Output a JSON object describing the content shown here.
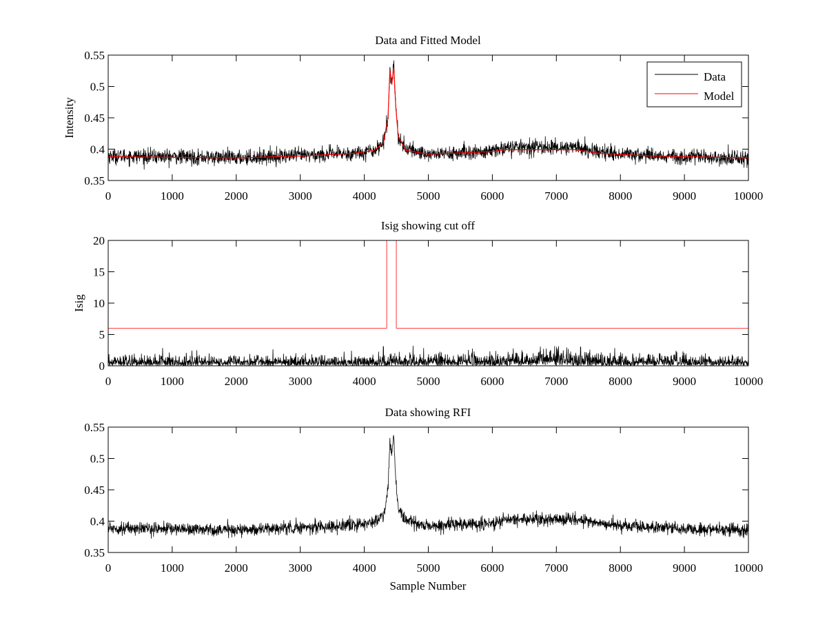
{
  "figure": {
    "background": "#ffffff"
  },
  "chart_data": [
    {
      "type": "line",
      "title": "Data and Fitted Model",
      "xlabel": "",
      "ylabel": "Intensity",
      "xlim": [
        0,
        10000
      ],
      "ylim": [
        0.35,
        0.55
      ],
      "xticks": [
        0,
        1000,
        2000,
        3000,
        4000,
        5000,
        6000,
        7000,
        8000,
        9000,
        10000
      ],
      "yticks": [
        0.35,
        0.4,
        0.45,
        0.5,
        0.55
      ],
      "ytick_labels": [
        "0.35",
        "0.4",
        "0.45",
        "0.5",
        "0.55"
      ],
      "grid": false,
      "legend": {
        "placement": "top-right",
        "entries": [
          "Data",
          "Model"
        ]
      },
      "series": [
        {
          "name": "Data",
          "color": "#000000",
          "kind": "noisy",
          "noise_amplitude": 0.006,
          "baseline": [
            [
              0,
              0.389
            ],
            [
              1000,
              0.388
            ],
            [
              2000,
              0.386
            ],
            [
              3000,
              0.39
            ],
            [
              3800,
              0.393
            ],
            [
              4150,
              0.398
            ],
            [
              4300,
              0.41
            ],
            [
              4370,
              0.45
            ],
            [
              4400,
              0.525
            ],
            [
              4430,
              0.505
            ],
            [
              4460,
              0.538
            ],
            [
              4490,
              0.47
            ],
            [
              4530,
              0.42
            ],
            [
              4650,
              0.4
            ],
            [
              5000,
              0.392
            ],
            [
              6000,
              0.396
            ],
            [
              6200,
              0.403
            ],
            [
              6800,
              0.403
            ],
            [
              7300,
              0.403
            ],
            [
              7700,
              0.395
            ],
            [
              8500,
              0.39
            ],
            [
              9000,
              0.388
            ],
            [
              10000,
              0.385
            ]
          ]
        },
        {
          "name": "Model",
          "color": "#ff0000",
          "kind": "smooth",
          "baseline": [
            [
              0,
              0.388
            ],
            [
              1000,
              0.387
            ],
            [
              2000,
              0.386
            ],
            [
              3000,
              0.389
            ],
            [
              3800,
              0.393
            ],
            [
              4150,
              0.398
            ],
            [
              4300,
              0.41
            ],
            [
              4370,
              0.45
            ],
            [
              4400,
              0.527
            ],
            [
              4430,
              0.503
            ],
            [
              4460,
              0.532
            ],
            [
              4490,
              0.47
            ],
            [
              4530,
              0.42
            ],
            [
              4650,
              0.398
            ],
            [
              5000,
              0.392
            ],
            [
              6000,
              0.396
            ],
            [
              6200,
              0.399
            ],
            [
              6800,
              0.399
            ],
            [
              7300,
              0.399
            ],
            [
              7700,
              0.393
            ],
            [
              8500,
              0.389
            ],
            [
              9000,
              0.388
            ],
            [
              10000,
              0.386
            ]
          ]
        }
      ]
    },
    {
      "type": "line",
      "title": "Isig showing cut off",
      "xlabel": "",
      "ylabel": "Isig",
      "xlim": [
        0,
        10000
      ],
      "ylim": [
        0,
        20
      ],
      "xticks": [
        0,
        1000,
        2000,
        3000,
        4000,
        5000,
        6000,
        7000,
        8000,
        9000,
        10000
      ],
      "yticks": [
        0,
        5,
        10,
        15,
        20
      ],
      "ytick_labels": [
        "0",
        "5",
        "10",
        "15",
        "20"
      ],
      "grid": false,
      "series": [
        {
          "name": "",
          "color": "#000000",
          "kind": "abs-noise",
          "baseline": [
            [
              0,
              0.8
            ],
            [
              4000,
              0.8
            ],
            [
              6500,
              1.0
            ],
            [
              7000,
              1.3
            ],
            [
              7500,
              1.2
            ],
            [
              8000,
              0.9
            ],
            [
              10000,
              0.8
            ]
          ]
        },
        {
          "name": "",
          "color": "#ff0000",
          "kind": "step",
          "points": [
            [
              0,
              6
            ],
            [
              4350,
              6
            ],
            [
              4350,
              20
            ],
            [
              4500,
              20
            ],
            [
              4500,
              6
            ],
            [
              10000,
              6
            ]
          ]
        }
      ]
    },
    {
      "type": "line",
      "title": "Data showing RFI",
      "xlabel": "Sample Number",
      "ylabel": "",
      "xlim": [
        0,
        10000
      ],
      "ylim": [
        0.35,
        0.55
      ],
      "xticks": [
        0,
        1000,
        2000,
        3000,
        4000,
        5000,
        6000,
        7000,
        8000,
        9000,
        10000
      ],
      "yticks": [
        0.35,
        0.4,
        0.45,
        0.5,
        0.55
      ],
      "ytick_labels": [
        "0.35",
        "0.4",
        "0.45",
        "0.5",
        "0.55"
      ],
      "grid": false,
      "series": [
        {
          "name": "",
          "color": "#000000",
          "kind": "noisy",
          "noise_amplitude": 0.005,
          "baseline": [
            [
              0,
              0.389
            ],
            [
              1000,
              0.388
            ],
            [
              2000,
              0.386
            ],
            [
              3000,
              0.39
            ],
            [
              3800,
              0.393
            ],
            [
              4150,
              0.398
            ],
            [
              4300,
              0.41
            ],
            [
              4370,
              0.45
            ],
            [
              4400,
              0.525
            ],
            [
              4430,
              0.505
            ],
            [
              4460,
              0.538
            ],
            [
              4490,
              0.47
            ],
            [
              4530,
              0.42
            ],
            [
              4650,
              0.4
            ],
            [
              5000,
              0.392
            ],
            [
              6000,
              0.396
            ],
            [
              6200,
              0.403
            ],
            [
              6800,
              0.403
            ],
            [
              7300,
              0.403
            ],
            [
              7700,
              0.395
            ],
            [
              8500,
              0.39
            ],
            [
              9000,
              0.388
            ],
            [
              10000,
              0.385
            ]
          ]
        }
      ]
    }
  ]
}
